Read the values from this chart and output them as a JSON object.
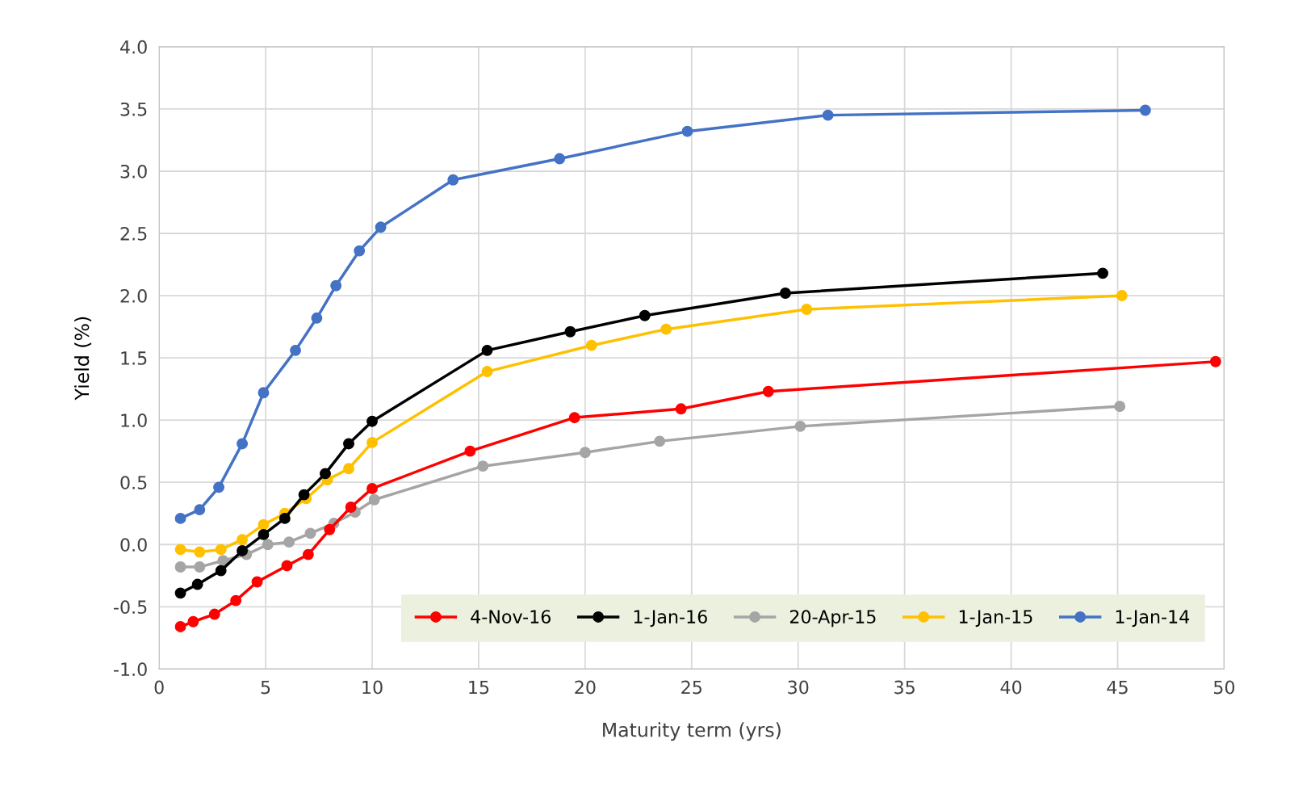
{
  "chart_data": {
    "type": "line",
    "xlabel": "Maturity term (yrs)",
    "ylabel": "Yield (%)",
    "xlim": [
      0,
      50
    ],
    "xticks": [
      0,
      5,
      10,
      15,
      20,
      25,
      30,
      35,
      40,
      45,
      50
    ],
    "ylim": [
      -1.0,
      4.0
    ],
    "yticks": [
      {
        "value": -1,
        "label": "-1.0"
      },
      {
        "value": -0.5,
        "label": "-0.5"
      },
      {
        "value": 0,
        "label": "0.0"
      },
      {
        "value": 0.5,
        "label": "0.5"
      },
      {
        "value": 1,
        "label": "1.0"
      },
      {
        "value": 1.5,
        "label": "1.5"
      },
      {
        "value": 2,
        "label": "2.0"
      },
      {
        "value": 2.5,
        "label": "2.5"
      },
      {
        "value": 3,
        "label": "3.0"
      },
      {
        "value": 3.5,
        "label": "3.5"
      },
      {
        "value": 4,
        "label": "4.0"
      }
    ],
    "grid": true,
    "legend": "bottom right",
    "marker": "circle",
    "line_style": "solid",
    "series": [
      {
        "name": "4-Nov-16",
        "color": "#ff0000",
        "x": [
          1,
          1.6,
          2.6,
          3.6,
          4.6,
          6,
          7,
          8,
          9,
          10,
          14.6,
          19.5,
          24.5,
          28.6,
          49.6
        ],
        "values": [
          -0.66,
          -0.62,
          -0.56,
          -0.45,
          -0.3,
          -0.17,
          -0.08,
          0.12,
          0.3,
          0.45,
          0.75,
          1.02,
          1.09,
          1.23,
          1.47
        ]
      },
      {
        "name": "1-Jan-16",
        "color": "#000000",
        "x": [
          1,
          1.8,
          2.9,
          3.9,
          4.9,
          5.9,
          6.8,
          7.8,
          8.9,
          10,
          15.4,
          19.3,
          22.8,
          29.4,
          44.3
        ],
        "values": [
          -0.39,
          -0.32,
          -0.21,
          -0.05,
          0.08,
          0.21,
          0.4,
          0.57,
          0.81,
          0.99,
          1.56,
          1.71,
          1.84,
          2.02,
          2.18
        ]
      },
      {
        "name": "20-Apr-15",
        "color": "#a5a5a5",
        "x": [
          1,
          1.9,
          3,
          4.1,
          5.1,
          6.1,
          7.1,
          8.2,
          9.2,
          10.1,
          15.2,
          20,
          23.5,
          30.1,
          45.1
        ],
        "values": [
          -0.18,
          -0.18,
          -0.13,
          -0.08,
          0,
          0.02,
          0.09,
          0.17,
          0.26,
          0.36,
          0.63,
          0.74,
          0.83,
          0.95,
          1.11
        ]
      },
      {
        "name": "1-Jan-15",
        "color": "#ffc000",
        "x": [
          1,
          1.9,
          2.9,
          3.9,
          4.9,
          5.9,
          6.9,
          7.9,
          8.9,
          10,
          15.4,
          20.3,
          23.8,
          30.4,
          45.2
        ],
        "values": [
          -0.04,
          -0.06,
          -0.04,
          0.04,
          0.16,
          0.25,
          0.37,
          0.52,
          0.61,
          0.82,
          1.39,
          1.6,
          1.73,
          1.89,
          2.0
        ]
      },
      {
        "name": "1-Jan-14",
        "color": "#4472c4",
        "x": [
          1,
          1.9,
          2.8,
          3.9,
          4.9,
          6.4,
          7.4,
          8.3,
          9.4,
          10.4,
          13.8,
          18.8,
          24.8,
          31.4,
          46.3
        ],
        "values": [
          0.21,
          0.28,
          0.46,
          0.81,
          1.22,
          1.56,
          1.82,
          2.08,
          2.36,
          2.55,
          2.93,
          3.1,
          3.32,
          3.45,
          3.49
        ]
      }
    ]
  }
}
